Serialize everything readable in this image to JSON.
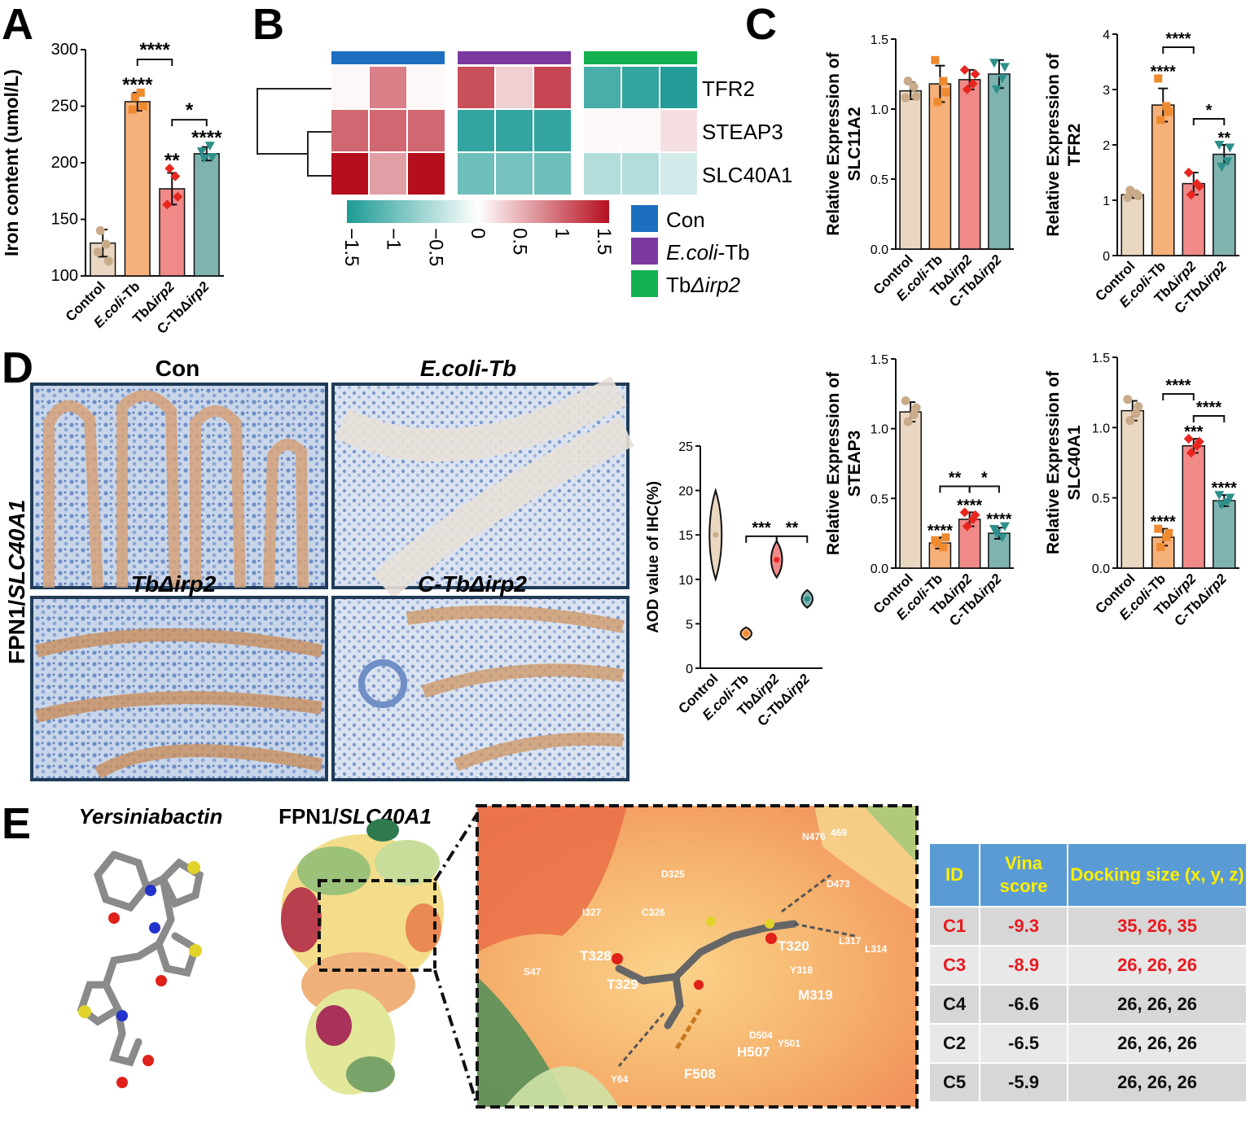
{
  "panel_letters": [
    "A",
    "B",
    "C",
    "D",
    "E"
  ],
  "colors": {
    "Control": "#e9d7c2",
    "E.coli-Tb": "#f6b07a",
    "TbΔirp2": "#ef8a89",
    "C-TbΔirp2": "#7fb3b0",
    "Control_dot": "#c9ab8a",
    "E.coli-Tb_dot": "#ee8a2f",
    "TbΔirp2_dot": "#e8261f",
    "C-TbΔirp2_dot": "#2c8f8a",
    "hm_low": "#1c9a94",
    "hm_mid": "#ffffff",
    "hm_high": "#b50f1e",
    "grp_con": "#1c6fbf",
    "grp_ecoli": "#7b39a0",
    "grp_tb": "#13b050"
  },
  "groups": [
    "Control",
    "E.coli-Tb",
    "TbΔirp2",
    "C-TbΔirp2"
  ],
  "chart_data": [
    {
      "id": "A",
      "type": "bar",
      "ylabel": "Iron content (umol/L)",
      "ylim": [
        100,
        300
      ],
      "yticks": [
        100,
        150,
        200,
        250,
        300
      ],
      "categories": [
        "Control",
        "E.coli-Tb",
        "TbΔirp2",
        "C-TbΔirp2"
      ],
      "values": [
        129,
        254,
        177,
        208
      ],
      "errors": [
        12,
        8,
        14,
        6
      ],
      "points": [
        [
          121,
          128,
          140,
          113
        ],
        [
          247,
          262,
          258,
          250
        ],
        [
          163,
          188,
          195,
          170
        ],
        [
          210,
          215,
          204,
          205
        ]
      ],
      "stars": [
        "",
        "****",
        "**",
        "****"
      ],
      "brackets": [
        {
          "from": 1,
          "to": 2,
          "label": "****"
        },
        {
          "from": 2,
          "to": 3,
          "label": "*"
        }
      ]
    },
    {
      "id": "B",
      "type": "heatmap",
      "rows": [
        "TFR2",
        "STEAP3",
        "SLC40A1"
      ],
      "values": [
        [
          0.05,
          0.8,
          0.05,
          1.1,
          0.3,
          1.15,
          -1.2,
          -1.35,
          -1.45
        ],
        [
          0.95,
          0.95,
          0.95,
          -1.35,
          -1.35,
          -1.35,
          0.05,
          0.05,
          0.2
        ],
        [
          1.5,
          0.6,
          1.5,
          -0.95,
          -0.9,
          -0.95,
          -0.5,
          -0.5,
          -0.3
        ]
      ],
      "colorbar_ticks": [
        "−1.5",
        "−1",
        "−0.5",
        "0",
        "0.5",
        "1",
        "1.5"
      ],
      "legend": [
        {
          "key": "grp_con",
          "parts": [
            {
              "t": "Con",
              "i": false
            }
          ]
        },
        {
          "key": "grp_ecoli",
          "parts": [
            {
              "t": "E.coli",
              "i": true
            },
            {
              "t": "-Tb",
              "i": false
            }
          ]
        },
        {
          "key": "grp_tb",
          "parts": [
            {
              "t": "Tb",
              "i": false
            },
            {
              "t": "Δirp2",
              "i": true
            }
          ]
        }
      ]
    },
    {
      "id": "C1",
      "type": "bar",
      "ylabel": [
        "Relative Expression of",
        "SLC11A2"
      ],
      "ylim": [
        0,
        1.5
      ],
      "yticks": [
        0.0,
        0.5,
        1.0,
        1.5
      ],
      "categories": [
        "Control",
        "E.coli-Tb",
        "TbΔirp2",
        "C-TbΔirp2"
      ],
      "values": [
        1.13,
        1.18,
        1.21,
        1.25
      ],
      "errors": [
        0.06,
        0.13,
        0.07,
        0.1
      ],
      "points": [
        [
          1.08,
          1.16,
          1.2,
          1.09
        ],
        [
          1.35,
          1.2,
          1.05,
          1.12
        ],
        [
          1.28,
          1.18,
          1.14,
          1.25
        ],
        [
          1.33,
          1.22,
          1.14,
          1.3
        ]
      ],
      "stars": [
        "",
        "",
        "",
        ""
      ],
      "brackets": []
    },
    {
      "id": "C2",
      "type": "bar",
      "ylabel": [
        "Relative Expression of",
        "TFR2"
      ],
      "ylim": [
        0,
        4
      ],
      "yticks": [
        0,
        1,
        2,
        3,
        4
      ],
      "categories": [
        "Control",
        "E.coli-Tb",
        "TbΔirp2",
        "C-TbΔirp2"
      ],
      "values": [
        1.1,
        2.72,
        1.3,
        1.83
      ],
      "errors": [
        0.06,
        0.3,
        0.2,
        0.17
      ],
      "points": [
        [
          1.05,
          1.12,
          1.18,
          1.08
        ],
        [
          3.2,
          2.7,
          2.45,
          2.6
        ],
        [
          1.5,
          1.3,
          1.1,
          1.25
        ],
        [
          2.0,
          1.7,
          1.6,
          1.95
        ]
      ],
      "stars": [
        "",
        "****",
        "",
        "**"
      ],
      "brackets": [
        {
          "from": 1,
          "to": 2,
          "label": "****"
        },
        {
          "from": 2,
          "to": 3,
          "label": "*"
        }
      ]
    },
    {
      "id": "C3",
      "type": "bar",
      "ylabel": [
        "Relative Expression of",
        "STEAP3"
      ],
      "ylim": [
        0,
        1.5
      ],
      "yticks": [
        0.0,
        0.5,
        1.0,
        1.5
      ],
      "categories": [
        "Control",
        "E.coli-Tb",
        "TbΔirp2",
        "C-TbΔirp2"
      ],
      "values": [
        1.12,
        0.18,
        0.35,
        0.25
      ],
      "errors": [
        0.07,
        0.04,
        0.05,
        0.04
      ],
      "points": [
        [
          1.2,
          1.1,
          1.05,
          1.15
        ],
        [
          0.2,
          0.15,
          0.18,
          0.22
        ],
        [
          0.4,
          0.35,
          0.3,
          0.38
        ],
        [
          0.28,
          0.22,
          0.25,
          0.3
        ]
      ],
      "stars": [
        "",
        "****",
        "****",
        "****"
      ],
      "brackets": [
        {
          "from": 1,
          "to": 2,
          "label": "**"
        },
        {
          "from": 2,
          "to": 3,
          "label": "*"
        }
      ]
    },
    {
      "id": "C4",
      "type": "bar",
      "ylabel": [
        "Relative Expression of",
        "SLC40A1"
      ],
      "ylim": [
        0,
        1.5
      ],
      "yticks": [
        0.0,
        0.5,
        1.0,
        1.5
      ],
      "categories": [
        "Control",
        "E.coli-Tb",
        "TbΔirp2",
        "C-TbΔirp2"
      ],
      "values": [
        1.12,
        0.22,
        0.87,
        0.48
      ],
      "errors": [
        0.07,
        0.06,
        0.05,
        0.04
      ],
      "points": [
        [
          1.2,
          1.1,
          1.05,
          1.15
        ],
        [
          0.28,
          0.22,
          0.15,
          0.25
        ],
        [
          0.92,
          0.87,
          0.82,
          0.9
        ],
        [
          0.52,
          0.47,
          0.45,
          0.5
        ]
      ],
      "stars": [
        "",
        "****",
        "***",
        "****"
      ],
      "brackets": [
        {
          "from": 1,
          "to": 2,
          "label": "****"
        },
        {
          "from": 2,
          "to": 3,
          "label": "****"
        }
      ]
    },
    {
      "id": "D",
      "type": "violin",
      "ylabel": "AOD value of IHC(%)",
      "ylim": [
        0,
        25
      ],
      "yticks": [
        0,
        5,
        10,
        15,
        20,
        25
      ],
      "categories": [
        "Control",
        "E.coli-Tb",
        "TbΔirp2",
        "C-TbΔirp2"
      ],
      "medians": [
        15.0,
        3.9,
        12.2,
        7.8
      ],
      "ranges": [
        [
          10,
          20
        ],
        [
          3.2,
          4.6
        ],
        [
          10.2,
          14.3
        ],
        [
          6.8,
          8.8
        ]
      ],
      "stars": [
        "",
        "",
        "",
        ""
      ],
      "brackets": [
        {
          "from": 1,
          "to": 2,
          "label": "***"
        },
        {
          "from": 2,
          "to": 3,
          "label": "**"
        }
      ]
    }
  ],
  "panelD": {
    "side_label_plain": "FPN1/",
    "side_label_ital": "SLC40A1",
    "image_titles": [
      "Con",
      "E.coli-Tb",
      "TbΔirp2",
      "C-TbΔirp2"
    ]
  },
  "panelE": {
    "molecule_title": "Yersiniabactin",
    "protein_title_plain": "FPN1/",
    "protein_title_ital": "SLC40A1",
    "residues": [
      "469",
      "N476",
      "D325",
      "D473",
      "I327",
      "C326",
      "T320",
      "L317",
      "L314",
      "T328",
      "S47",
      "Y318",
      "T329",
      "M319",
      "D504",
      "Y501",
      "H507",
      "F508",
      "Y64"
    ],
    "table": {
      "headers": [
        "ID",
        "Vina score",
        "Docking size (x, y, z)"
      ],
      "rows": [
        {
          "id": "C1",
          "vina": "-9.3",
          "size": "35, 26, 35",
          "hl": true
        },
        {
          "id": "C3",
          "vina": "-8.9",
          "size": "26, 26, 26",
          "hl": true
        },
        {
          "id": "C4",
          "vina": "-6.6",
          "size": "26, 26, 26",
          "hl": false
        },
        {
          "id": "C2",
          "vina": "-6.5",
          "size": "26, 26, 26",
          "hl": false
        },
        {
          "id": "C5",
          "vina": "-5.9",
          "size": "26, 26, 26",
          "hl": false
        }
      ]
    }
  }
}
